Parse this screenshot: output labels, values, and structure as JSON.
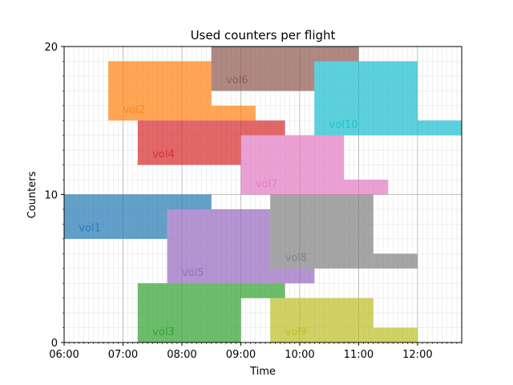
{
  "chart_data": {
    "type": "gantt",
    "title": "Used counters per flight",
    "xlabel": "Time",
    "ylabel": "Counters",
    "xlim": [
      "06:00",
      "12:45"
    ],
    "ylim": [
      0,
      20
    ],
    "x_ticks": [
      "06:00",
      "07:00",
      "08:00",
      "09:00",
      "10:00",
      "11:00",
      "12:00"
    ],
    "y_ticks": [
      0,
      10,
      20
    ],
    "grid": true,
    "series": [
      {
        "name": "vol1",
        "color": "#1f77b4",
        "blocks": [
          {
            "start": "06:00",
            "end": "07:45",
            "y0": 7,
            "y1": 10
          },
          {
            "start": "07:45",
            "end": "08:30",
            "y0": 9,
            "y1": 10
          }
        ]
      },
      {
        "name": "vol2",
        "color": "#ff7f0e",
        "blocks": [
          {
            "start": "06:45",
            "end": "08:30",
            "y0": 15,
            "y1": 19
          },
          {
            "start": "08:30",
            "end": "09:15",
            "y0": 15,
            "y1": 16
          }
        ]
      },
      {
        "name": "vol3",
        "color": "#2ca02c",
        "blocks": [
          {
            "start": "07:15",
            "end": "09:00",
            "y0": 0,
            "y1": 4
          },
          {
            "start": "09:00",
            "end": "09:45",
            "y0": 3,
            "y1": 4
          }
        ]
      },
      {
        "name": "vol4",
        "color": "#d62728",
        "blocks": [
          {
            "start": "07:15",
            "end": "09:00",
            "y0": 12,
            "y1": 15
          },
          {
            "start": "09:00",
            "end": "09:45",
            "y0": 14,
            "y1": 15
          }
        ]
      },
      {
        "name": "vol5",
        "color": "#9467bd",
        "blocks": [
          {
            "start": "07:45",
            "end": "09:30",
            "y0": 4,
            "y1": 9
          },
          {
            "start": "09:30",
            "end": "10:15",
            "y0": 4,
            "y1": 5
          }
        ]
      },
      {
        "name": "vol6",
        "color": "#8c564b",
        "blocks": [
          {
            "start": "08:30",
            "end": "10:15",
            "y0": 17,
            "y1": 20
          },
          {
            "start": "10:15",
            "end": "11:00",
            "y0": 19,
            "y1": 20
          }
        ]
      },
      {
        "name": "vol7",
        "color": "#e377c2",
        "blocks": [
          {
            "start": "09:00",
            "end": "10:45",
            "y0": 10,
            "y1": 14
          },
          {
            "start": "10:45",
            "end": "11:30",
            "y0": 10,
            "y1": 11
          }
        ]
      },
      {
        "name": "vol8",
        "color": "#7f7f7f",
        "blocks": [
          {
            "start": "09:30",
            "end": "11:15",
            "y0": 5,
            "y1": 10
          },
          {
            "start": "11:15",
            "end": "12:00",
            "y0": 5,
            "y1": 6
          }
        ]
      },
      {
        "name": "vol9",
        "color": "#bcbd22",
        "blocks": [
          {
            "start": "09:30",
            "end": "11:15",
            "y0": 0,
            "y1": 3
          },
          {
            "start": "11:15",
            "end": "12:00",
            "y0": 0,
            "y1": 1
          }
        ]
      },
      {
        "name": "vol10",
        "color": "#17becf",
        "blocks": [
          {
            "start": "10:15",
            "end": "12:00",
            "y0": 14,
            "y1": 19
          },
          {
            "start": "12:00",
            "end": "12:45",
            "y0": 14,
            "y1": 15
          }
        ]
      }
    ]
  }
}
